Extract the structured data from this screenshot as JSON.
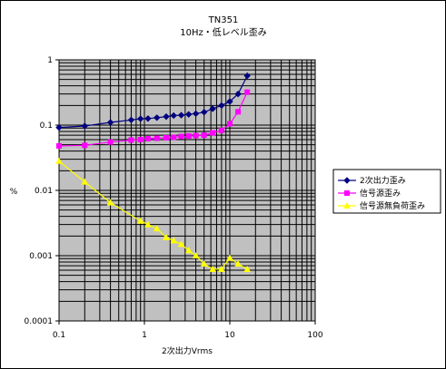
{
  "chart_data": {
    "type": "line",
    "title": "TN351",
    "subtitle": "10Hz・低レベル歪み",
    "xlabel": "2次出力Vrms",
    "ylabel": "%",
    "x_scale": "log",
    "y_scale": "log",
    "xlim": [
      0.1,
      100
    ],
    "ylim": [
      0.0001,
      1
    ],
    "x_ticks": [
      "0.1",
      "1",
      "10",
      "100"
    ],
    "y_ticks": [
      "1",
      "0.1",
      "0.01",
      "0.001",
      "0.0001"
    ],
    "grid": true,
    "plot_background": "#c0c0c0",
    "legend_position": "right",
    "series": [
      {
        "name": "2次出力歪み",
        "color": "#000080",
        "marker": "diamond",
        "points": [
          [
            0.1,
            0.092
          ],
          [
            0.2,
            0.097
          ],
          [
            0.4,
            0.11
          ],
          [
            0.7,
            0.12
          ],
          [
            0.9,
            0.125
          ],
          [
            1.1,
            0.126
          ],
          [
            1.4,
            0.13
          ],
          [
            1.8,
            0.135
          ],
          [
            2.2,
            0.14
          ],
          [
            2.7,
            0.142
          ],
          [
            3.3,
            0.146
          ],
          [
            4.0,
            0.15
          ],
          [
            5.0,
            0.158
          ],
          [
            6.3,
            0.178
          ],
          [
            8.0,
            0.2
          ],
          [
            10.0,
            0.23
          ],
          [
            12.5,
            0.3
          ],
          [
            16.0,
            0.57
          ]
        ]
      },
      {
        "name": "信号源歪み",
        "color": "#ff00ff",
        "marker": "square",
        "points": [
          [
            0.1,
            0.048
          ],
          [
            0.2,
            0.049
          ],
          [
            0.4,
            0.055
          ],
          [
            0.7,
            0.059
          ],
          [
            0.9,
            0.06
          ],
          [
            1.1,
            0.062
          ],
          [
            1.4,
            0.063
          ],
          [
            1.8,
            0.064
          ],
          [
            2.2,
            0.065
          ],
          [
            2.7,
            0.067
          ],
          [
            3.3,
            0.068
          ],
          [
            4.0,
            0.069
          ],
          [
            5.0,
            0.07
          ],
          [
            6.3,
            0.076
          ],
          [
            8.0,
            0.083
          ],
          [
            10.0,
            0.105
          ],
          [
            12.5,
            0.16
          ],
          [
            16.0,
            0.32
          ]
        ]
      },
      {
        "name": "信号源無負荷歪み",
        "color": "#ffff00",
        "marker": "triangle",
        "points": [
          [
            0.1,
            0.028
          ],
          [
            0.2,
            0.0135
          ],
          [
            0.4,
            0.0065
          ],
          [
            0.9,
            0.0034
          ],
          [
            1.1,
            0.003
          ],
          [
            1.4,
            0.0026
          ],
          [
            1.8,
            0.0019
          ],
          [
            2.2,
            0.0017
          ],
          [
            2.7,
            0.0015
          ],
          [
            3.3,
            0.0012
          ],
          [
            4.0,
            0.001
          ],
          [
            5.0,
            0.00075
          ],
          [
            6.3,
            0.00062
          ],
          [
            8.0,
            0.00062
          ],
          [
            10.0,
            0.00092
          ],
          [
            12.5,
            0.00075
          ],
          [
            16.0,
            0.00062
          ]
        ]
      }
    ]
  }
}
